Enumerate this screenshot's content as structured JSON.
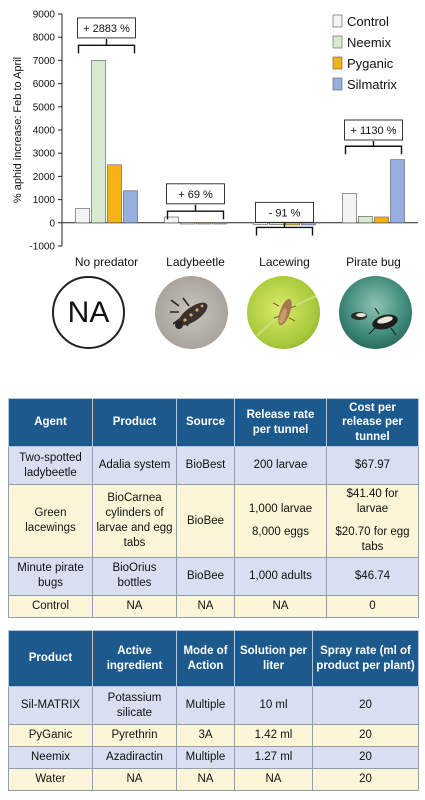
{
  "chart_data": {
    "type": "bar",
    "ylabel": "% aphid increase: Feb to April",
    "ylim": [
      -1000,
      9000
    ],
    "yticks": [
      -1000,
      0,
      1000,
      2000,
      3000,
      4000,
      5000,
      6000,
      7000,
      8000,
      9000
    ],
    "categories": [
      "No predator",
      "Ladybeetle",
      "Lacewing",
      "Pirate bug"
    ],
    "series": [
      {
        "name": "Control",
        "values": [
          620,
          250,
          -70,
          1270
        ]
      },
      {
        "name": "Neemix",
        "values": [
          7000,
          -10,
          -80,
          280
        ]
      },
      {
        "name": "Pyganic",
        "values": [
          2500,
          -10,
          -90,
          250
        ]
      },
      {
        "name": "Silmatrix",
        "values": [
          1380,
          -20,
          -90,
          2720
        ]
      }
    ],
    "colors": [
      "#f4f4f4",
      "#d6ead0",
      "#f5b316",
      "#97aee0"
    ],
    "annotations": [
      "+ 2883 %",
      "+ 69 %",
      "- 91 %",
      "+ 1130 %"
    ],
    "legend_position": "top-right",
    "grid": false
  },
  "photos": [
    {
      "label": "NA"
    },
    {
      "icon": "ladybeetle-larva-photo"
    },
    {
      "icon": "lacewing-larva-photo"
    },
    {
      "icon": "pirate-bug-photo"
    }
  ],
  "table1": {
    "headers": [
      "Agent",
      "Product",
      "Source",
      "Release rate per tunnel",
      "Cost per release per tunnel"
    ],
    "rows": [
      {
        "agent": "Two-spotted ladybeetle",
        "product": "Adalia system",
        "source": "BioBest",
        "rate": "200 larvae",
        "cost": "$67.97"
      },
      {
        "agent": "Green lacewings",
        "product": "BioCarnea cylinders of larvae and egg tabs",
        "source": "BioBee",
        "rate": "1,000 larvae",
        "rate2": "8,000 eggs",
        "cost": "$41.40 for larvae",
        "cost2": "$20.70 for egg tabs"
      },
      {
        "agent": "Minute pirate bugs",
        "product": "BioOrius bottles",
        "source": "BioBee",
        "rate": "1,000 adults",
        "cost": "$46.74"
      },
      {
        "agent": "Control",
        "product": "NA",
        "source": "NA",
        "rate": "NA",
        "cost": "0"
      }
    ]
  },
  "table2": {
    "headers": [
      "Product",
      "Active ingredient",
      "Mode of Action",
      "Solution per liter",
      "Spray rate (ml of product per plant)"
    ],
    "rows": [
      {
        "product": "Sil-MATRIX",
        "ingredient": "Potassium silicate",
        "mode": "Multiple",
        "solution": "10 ml",
        "spray": "20"
      },
      {
        "product": "PyGanic",
        "ingredient": "Pyrethrin",
        "mode": "3A",
        "solution": "1.42 ml",
        "spray": "20"
      },
      {
        "product": "Neemix",
        "ingredient": "Azadiractin",
        "mode": "Multiple",
        "solution": "1.27 ml",
        "spray": "20"
      },
      {
        "product": "Water",
        "ingredient": "NA",
        "mode": "NA",
        "solution": "NA",
        "spray": "20"
      }
    ]
  }
}
